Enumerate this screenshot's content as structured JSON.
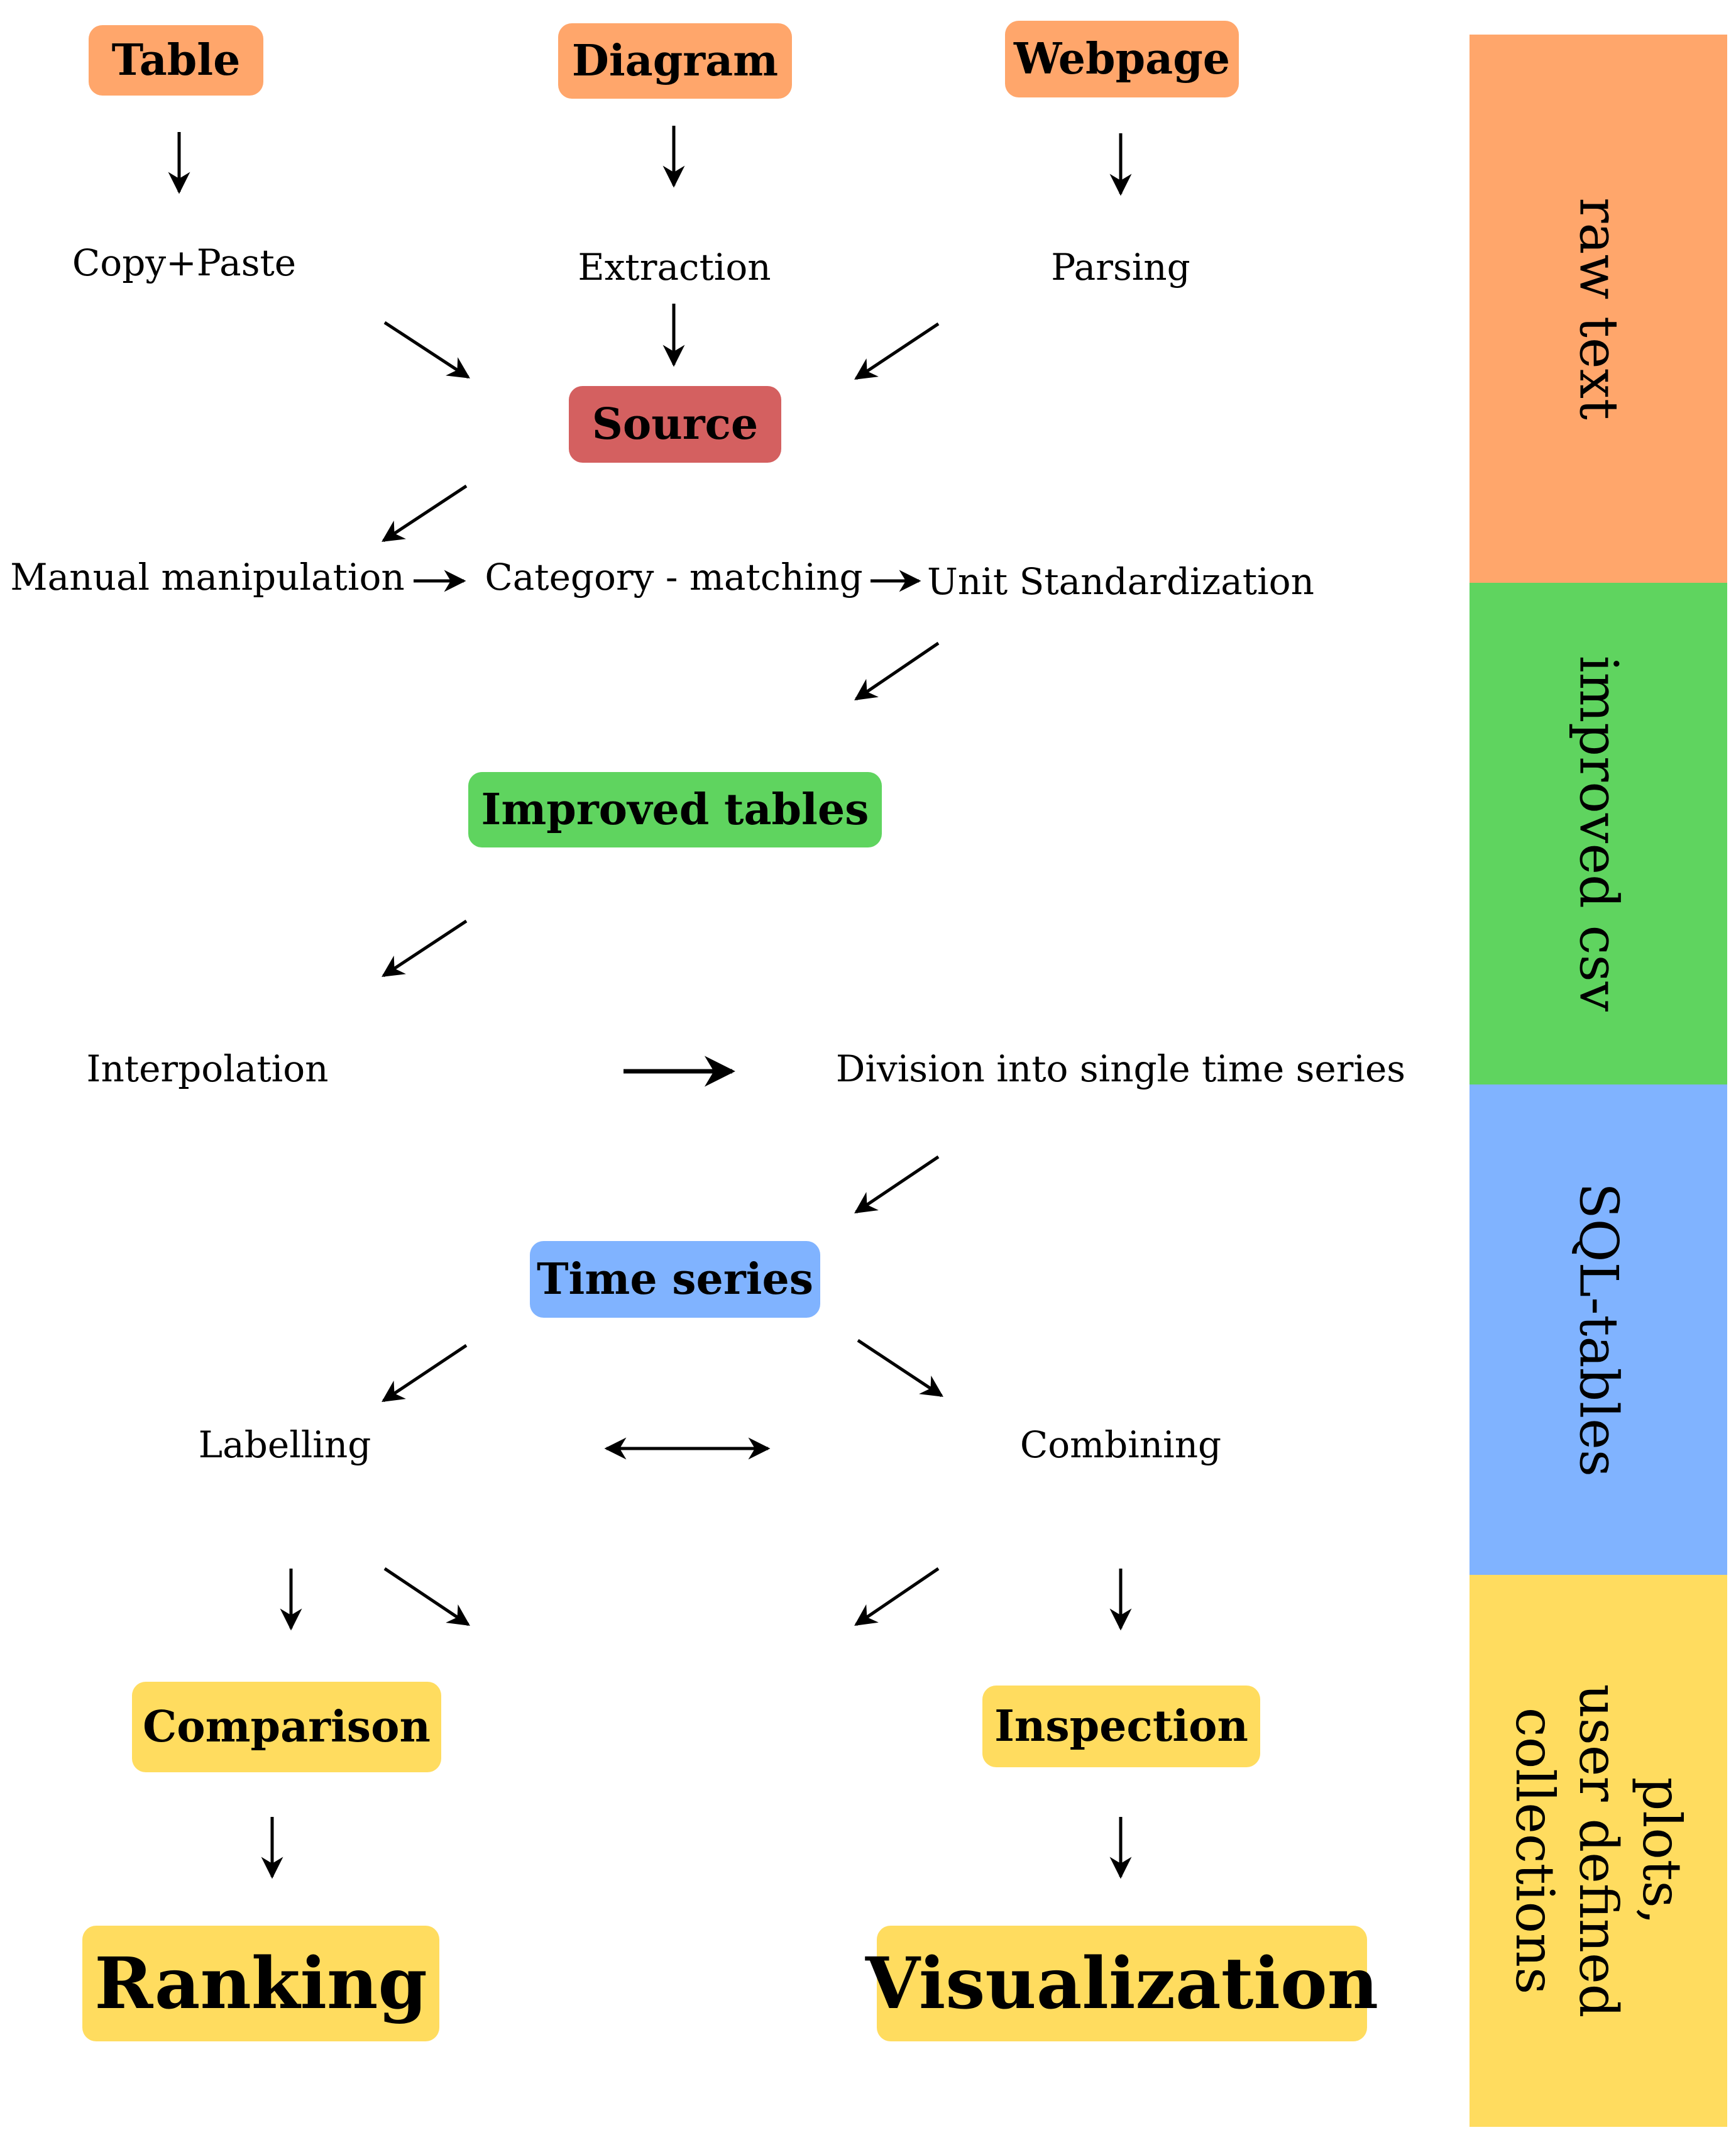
{
  "colors": {
    "orange": "#FFA66B",
    "red": "#D46060",
    "green": "#5FD45F",
    "blue": "#80B3FF",
    "yellow": "#FFDC5F"
  },
  "boxes": {
    "table": "Table",
    "diagram": "Diagram",
    "webpage": "Webpage",
    "source": "Source",
    "improved_tables": "Improved tables",
    "time_series": "Time series",
    "comparison": "Comparison",
    "inspection": "Inspection",
    "ranking": "Ranking",
    "visualization": "Visualization"
  },
  "steps": {
    "copy_paste": "Copy+Paste",
    "extraction": "Extraction",
    "parsing": "Parsing",
    "manual_manipulation": "Manual manipulation",
    "category_matching": "Category - matching",
    "unit_standardization": "Unit Standardization",
    "interpolation": "Interpolation",
    "division": "Division into single time series",
    "labelling": "Labelling",
    "combining": "Combining"
  },
  "bands": {
    "raw_text": "raw text",
    "improved_csv": "improved csv",
    "sql_tables": "SQL-tables",
    "plots": "plots,\nuser defined\ncollections"
  }
}
